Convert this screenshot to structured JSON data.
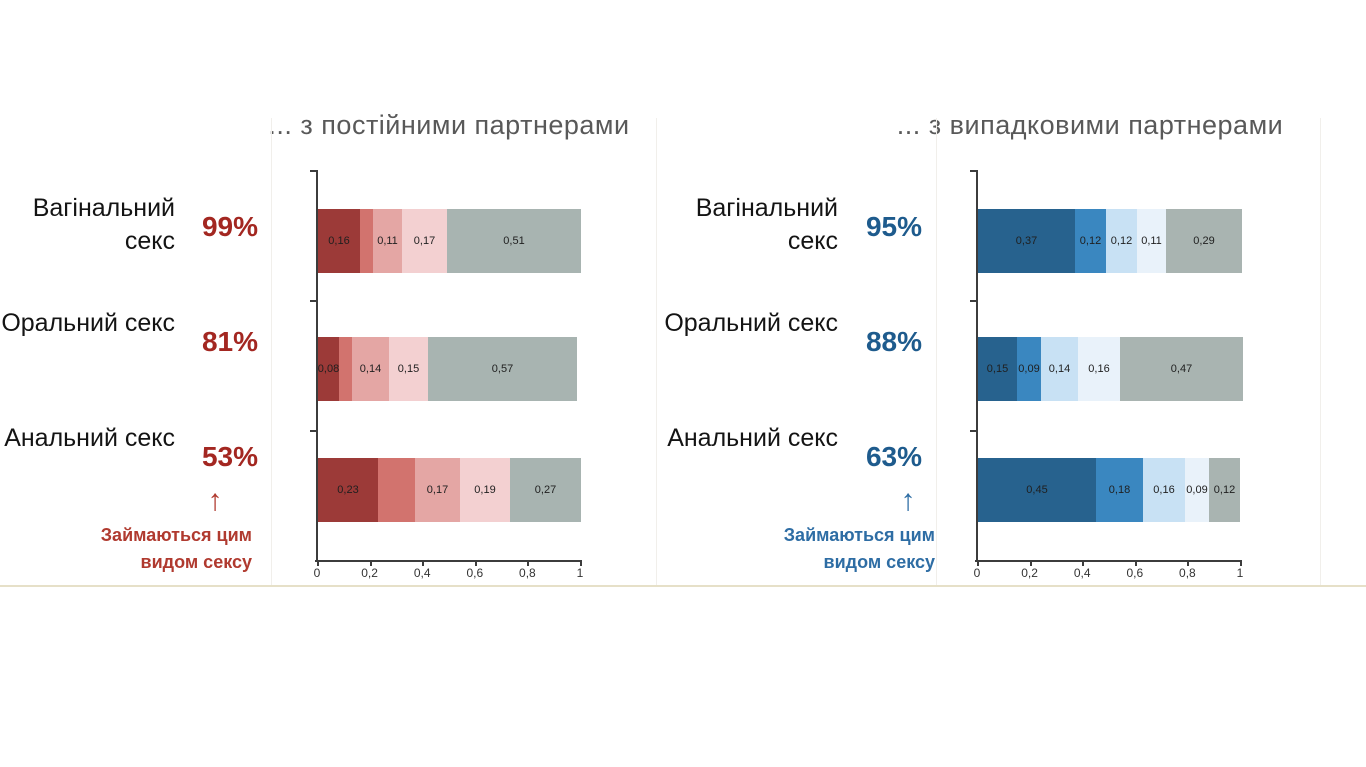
{
  "slide": {
    "background": "#FFFFFF",
    "bottom_rule_color": "#E6E0C8",
    "panel_border_color": "#F1EFEB"
  },
  "chart_data": [
    {
      "type": "bar",
      "orientation": "horizontal",
      "stacked": true,
      "title": "... з постійними партнерами",
      "categories": [
        "Вагінальний секс",
        "Оральний секс",
        "Анальний секс"
      ],
      "category_totals": [
        "99%",
        "81%",
        "53%"
      ],
      "total_color": "#A32721",
      "annotation_arrow": "↑",
      "annotation_text": "Займаються цим видом сексу",
      "annotation_color": "#B03A2F",
      "xlim": [
        0,
        1
      ],
      "xticks": [
        "0",
        "0,2",
        "0,4",
        "0,6",
        "0,8",
        "1"
      ],
      "grid": false,
      "legend": "none",
      "series": [
        {
          "name": "share_1",
          "color": "#9C3A38",
          "values": [
            0.16,
            0.08,
            0.23
          ]
        },
        {
          "name": "share_2",
          "color": "#D2736E",
          "values": [
            0.05,
            0.05,
            0.14
          ]
        },
        {
          "name": "share_3",
          "color": "#E4A6A4",
          "values": [
            0.11,
            0.14,
            0.17
          ]
        },
        {
          "name": "share_4",
          "color": "#F3D0D1",
          "values": [
            0.17,
            0.15,
            0.19
          ]
        },
        {
          "name": "share_5",
          "color": "#A8B4B1",
          "values": [
            0.51,
            0.57,
            0.27
          ]
        }
      ],
      "bar_labels": [
        [
          "0,16",
          "",
          "0,11",
          "0,17",
          "0,51"
        ],
        [
          "0,08",
          "",
          "0,14",
          "0,15",
          "0,57"
        ],
        [
          "0,23",
          "",
          "0,17",
          "0,19",
          "0,27"
        ]
      ]
    },
    {
      "type": "bar",
      "orientation": "horizontal",
      "stacked": true,
      "title": "... з випадковими партнерами",
      "categories": [
        "Вагінальний секс",
        "Оральний секс",
        "Анальний секс"
      ],
      "category_totals": [
        "95%",
        "88%",
        "63%"
      ],
      "total_color": "#1E5B8D",
      "annotation_arrow": "↑",
      "annotation_text": "Займаються цим видом сексу",
      "annotation_color": "#2E6DA4",
      "xlim": [
        0,
        1
      ],
      "xticks": [
        "0",
        "0,2",
        "0,4",
        "0,6",
        "0,8",
        "1"
      ],
      "grid": false,
      "legend": "none",
      "series": [
        {
          "name": "share_1",
          "color": "#27628E",
          "values": [
            0.37,
            0.15,
            0.45
          ]
        },
        {
          "name": "share_2",
          "color": "#3A87C0",
          "values": [
            0.12,
            0.09,
            0.18
          ]
        },
        {
          "name": "share_3",
          "color": "#C8E1F4",
          "values": [
            0.12,
            0.14,
            0.16
          ]
        },
        {
          "name": "share_4",
          "color": "#E9F2FA",
          "values": [
            0.11,
            0.16,
            0.09
          ]
        },
        {
          "name": "share_5",
          "color": "#A9B4B1",
          "values": [
            0.29,
            0.47,
            0.12
          ]
        }
      ],
      "bar_labels": [
        [
          "0,37",
          "0,12",
          "0,12",
          "0,11",
          "0,29"
        ],
        [
          "0,15",
          "0,09",
          "0,14",
          "0,16",
          "0,47"
        ],
        [
          "0,45",
          "0,18",
          "0,16",
          "0,09",
          "0,12"
        ]
      ]
    }
  ]
}
